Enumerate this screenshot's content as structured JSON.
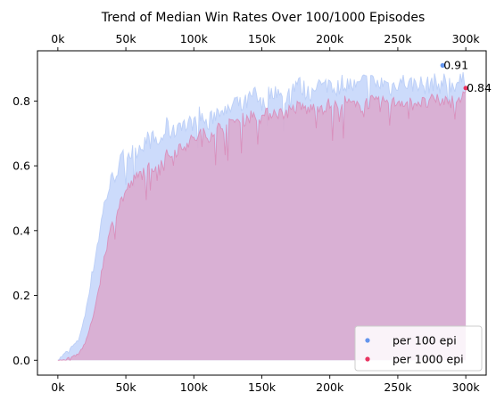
{
  "chart_data": {
    "type": "area",
    "title": "Trend of Median Win Rates Over 100/1000 Episodes",
    "xlabel": "",
    "ylabel": "",
    "xlim": [
      -15000,
      315000
    ],
    "ylim": [
      -0.046,
      0.955
    ],
    "x_ticks": [
      0,
      50000,
      100000,
      150000,
      200000,
      250000,
      300000
    ],
    "x_tick_labels": [
      "0k",
      "50k",
      "100k",
      "150k",
      "200k",
      "250k",
      "300k"
    ],
    "y_ticks": [
      0.0,
      0.2,
      0.4,
      0.6,
      0.8
    ],
    "y_tick_labels": [
      "0.0",
      "0.2",
      "0.4",
      "0.6",
      "0.8"
    ],
    "top_axis_ticks": true,
    "grid": false,
    "legend_position": "lower-right",
    "series": [
      {
        "name": "per 100 epi",
        "color": "#6495ED",
        "fill_color": "#c9d9fb",
        "x": [
          0,
          5000,
          10000,
          15000,
          20000,
          25000,
          30000,
          35000,
          40000,
          45000,
          50000,
          55000,
          60000,
          65000,
          70000,
          75000,
          80000,
          85000,
          90000,
          95000,
          100000,
          105000,
          110000,
          115000,
          120000,
          125000,
          130000,
          135000,
          140000,
          145000,
          150000,
          155000,
          160000,
          165000,
          170000,
          175000,
          180000,
          185000,
          190000,
          195000,
          200000,
          205000,
          210000,
          215000,
          220000,
          225000,
          230000,
          235000,
          240000,
          245000,
          250000,
          255000,
          260000,
          265000,
          270000,
          275000,
          280000,
          285000,
          290000,
          295000,
          300000
        ],
        "values": [
          0.0,
          0.02,
          0.04,
          0.06,
          0.14,
          0.26,
          0.38,
          0.5,
          0.56,
          0.6,
          0.64,
          0.64,
          0.66,
          0.68,
          0.68,
          0.67,
          0.72,
          0.7,
          0.74,
          0.72,
          0.74,
          0.76,
          0.72,
          0.76,
          0.78,
          0.76,
          0.8,
          0.78,
          0.8,
          0.82,
          0.78,
          0.82,
          0.84,
          0.8,
          0.82,
          0.86,
          0.84,
          0.82,
          0.86,
          0.84,
          0.86,
          0.84,
          0.86,
          0.85,
          0.84,
          0.86,
          0.86,
          0.85,
          0.86,
          0.84,
          0.86,
          0.86,
          0.85,
          0.86,
          0.84,
          0.86,
          0.85,
          0.86,
          0.85,
          0.86,
          0.86
        ],
        "marker": {
          "x": 283000,
          "y": 0.91,
          "label": "0.91"
        }
      },
      {
        "name": "per 1000 epi",
        "color": "#e8335f",
        "fill_color": "#dba8cd",
        "x": [
          0,
          5000,
          10000,
          15000,
          20000,
          25000,
          30000,
          35000,
          40000,
          45000,
          50000,
          55000,
          60000,
          65000,
          70000,
          75000,
          80000,
          85000,
          90000,
          95000,
          100000,
          105000,
          110000,
          115000,
          120000,
          125000,
          130000,
          135000,
          140000,
          145000,
          150000,
          155000,
          160000,
          165000,
          170000,
          175000,
          180000,
          185000,
          190000,
          195000,
          200000,
          205000,
          210000,
          215000,
          220000,
          225000,
          230000,
          235000,
          240000,
          245000,
          250000,
          255000,
          260000,
          265000,
          270000,
          275000,
          280000,
          285000,
          290000,
          295000,
          300000
        ],
        "values": [
          0.0,
          0.0,
          0.01,
          0.02,
          0.05,
          0.12,
          0.22,
          0.34,
          0.42,
          0.48,
          0.52,
          0.55,
          0.57,
          0.59,
          0.6,
          0.61,
          0.63,
          0.64,
          0.66,
          0.67,
          0.68,
          0.7,
          0.69,
          0.71,
          0.72,
          0.72,
          0.74,
          0.74,
          0.75,
          0.76,
          0.75,
          0.76,
          0.77,
          0.76,
          0.77,
          0.78,
          0.78,
          0.77,
          0.79,
          0.78,
          0.79,
          0.78,
          0.8,
          0.79,
          0.78,
          0.79,
          0.8,
          0.79,
          0.8,
          0.79,
          0.8,
          0.8,
          0.79,
          0.8,
          0.79,
          0.8,
          0.8,
          0.8,
          0.8,
          0.81,
          0.81
        ],
        "marker": {
          "x": 300000,
          "y": 0.84,
          "label": "0.84"
        }
      }
    ]
  }
}
